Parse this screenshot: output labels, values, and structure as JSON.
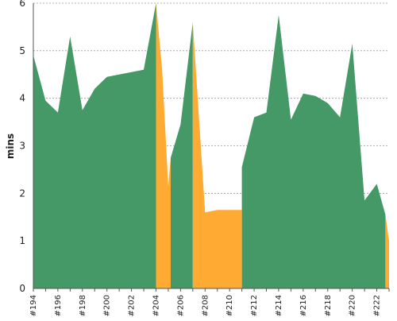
{
  "chart_data": {
    "type": "area",
    "ylabel": "mins",
    "xlabel": "",
    "ylim": [
      0,
      6
    ],
    "yticks": [
      0,
      1,
      2,
      3,
      4,
      5,
      6
    ],
    "grid": true,
    "x_tick_labels": [
      "#194",
      "#196",
      "#198",
      "#200",
      "#202",
      "#204",
      "#206",
      "#208",
      "#210",
      "#212",
      "#214",
      "#216",
      "#218",
      "#220",
      "#222"
    ],
    "colors": {
      "success": "#449966",
      "failure": "#ffaa33",
      "grid": "#999999",
      "axis": "#555555"
    },
    "series": [
      {
        "status": "success",
        "segments": [
          {
            "builds": [
              194,
              195,
              196,
              197,
              198,
              199,
              200,
              201,
              202,
              203,
              204
            ],
            "values": [
              4.9,
              3.95,
              3.7,
              5.3,
              3.75,
              4.2,
              4.45,
              4.5,
              4.55,
              4.6,
              6.0
            ]
          },
          {
            "builds": [
              205.2,
              206,
              207
            ],
            "values": [
              2.75,
              3.45,
              5.6
            ]
          },
          {
            "builds": [
              211.0,
              212,
              213,
              214,
              215,
              216,
              217,
              218,
              219,
              220,
              221,
              222,
              222.7
            ],
            "values": [
              2.55,
              3.6,
              3.7,
              5.75,
              3.55,
              4.1,
              4.05,
              3.9,
              3.6,
              5.15,
              1.85,
              2.2,
              1.55
            ]
          }
        ]
      },
      {
        "status": "failure",
        "segments": [
          {
            "builds": [
              204,
              204.5,
              205,
              205.2
            ],
            "values": [
              6.0,
              4.6,
              2.15,
              2.75
            ]
          },
          {
            "builds": [
              207,
              208,
              209,
              210,
              211,
              211.0
            ],
            "values": [
              5.6,
              1.6,
              1.65,
              1.65,
              1.65,
              2.55
            ]
          },
          {
            "builds": [
              222.7,
              223
            ],
            "values": [
              1.55,
              1.0
            ]
          }
        ]
      }
    ]
  }
}
